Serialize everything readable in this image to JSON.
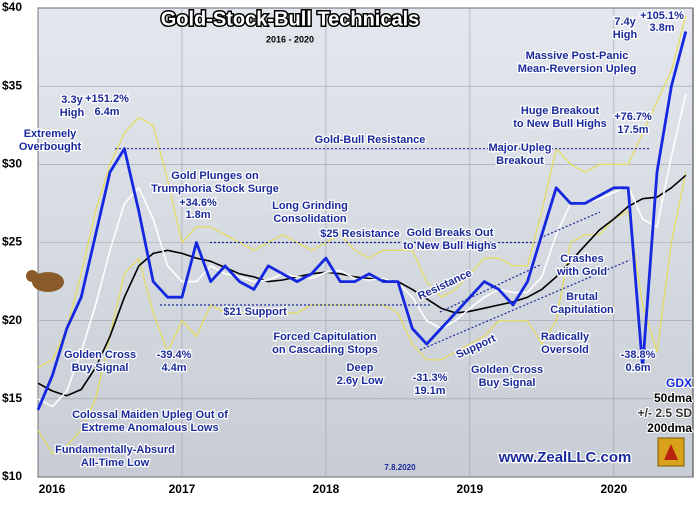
{
  "chart_data": {
    "type": "line",
    "title": "Gold-Stock-Bull Technicals",
    "subtitle": "2016 - 2020",
    "x": [
      2016.0,
      2016.1,
      2016.2,
      2016.3,
      2016.4,
      2016.5,
      2016.6,
      2016.7,
      2016.8,
      2016.9,
      2017.0,
      2017.1,
      2017.2,
      2017.3,
      2017.4,
      2017.5,
      2017.6,
      2017.7,
      2017.8,
      2017.9,
      2018.0,
      2018.1,
      2018.2,
      2018.3,
      2018.4,
      2018.5,
      2018.6,
      2018.7,
      2018.8,
      2018.9,
      2019.0,
      2019.1,
      2019.2,
      2019.3,
      2019.4,
      2019.5,
      2019.6,
      2019.7,
      2019.8,
      2019.9,
      2020.0,
      2020.1,
      2020.2,
      2020.3,
      2020.4,
      2020.5
    ],
    "xlim": [
      2016,
      2020.55
    ],
    "xticks": [
      2016,
      2017,
      2018,
      2019,
      2020
    ],
    "ylim": [
      10,
      40
    ],
    "yticks": [
      {
        "value": 10,
        "label": "$10"
      },
      {
        "value": 15,
        "label": "$15"
      },
      {
        "value": 20,
        "label": "$20"
      },
      {
        "value": 25,
        "label": "$25"
      },
      {
        "value": 30,
        "label": "$30"
      },
      {
        "value": 35,
        "label": "$35"
      },
      {
        "value": 40,
        "label": "$40"
      }
    ],
    "grid": true,
    "legend": "lower right",
    "series": [
      {
        "name": "GDX",
        "color": "#1428e0",
        "values": [
          14.3,
          16.5,
          19.5,
          21.5,
          25.5,
          29.5,
          31.0,
          27.0,
          22.5,
          21.5,
          21.5,
          25.0,
          22.5,
          23.5,
          22.5,
          22.0,
          23.5,
          23.0,
          22.5,
          23.0,
          24.0,
          22.5,
          22.5,
          23.0,
          22.5,
          22.5,
          19.5,
          18.5,
          19.5,
          20.5,
          21.5,
          22.5,
          22.0,
          21.0,
          22.5,
          25.5,
          28.5,
          27.5,
          27.5,
          28.0,
          28.5,
          28.5,
          17.0,
          29.5,
          35.0,
          38.5
        ]
      },
      {
        "name": "50dma",
        "color": "#ffffff",
        "values": [
          15.0,
          14.5,
          15.5,
          18.0,
          21.0,
          24.5,
          27.5,
          28.5,
          26.5,
          23.5,
          22.5,
          22.5,
          23.5,
          23.0,
          22.8,
          22.5,
          22.6,
          23.0,
          22.8,
          22.7,
          23.1,
          23.2,
          22.7,
          22.6,
          22.7,
          22.4,
          21.5,
          20.0,
          19.5,
          20.0,
          20.8,
          21.5,
          22.0,
          21.8,
          21.8,
          22.8,
          25.5,
          27.5,
          27.5,
          27.8,
          28.2,
          28.6,
          26.5,
          26.0,
          30.5,
          34.5
        ]
      },
      {
        "name": "200dma",
        "color": "#000000",
        "values": [
          16.0,
          15.5,
          15.2,
          15.6,
          17.0,
          19.0,
          21.5,
          23.5,
          24.3,
          24.5,
          24.3,
          24.0,
          23.8,
          23.4,
          23.0,
          22.8,
          22.5,
          22.6,
          22.8,
          23.0,
          23.1,
          23.0,
          22.8,
          22.7,
          22.6,
          22.5,
          22.0,
          21.4,
          20.8,
          20.5,
          20.6,
          20.8,
          21.0,
          21.2,
          21.5,
          22.0,
          22.8,
          23.8,
          24.8,
          25.8,
          26.5,
          27.3,
          27.8,
          27.9,
          28.5,
          29.3
        ]
      }
    ],
    "band": {
      "name": "+/- 2.5 SD",
      "color": "#e6dc5a",
      "upper": [
        17.0,
        17.5,
        19.5,
        23.0,
        27.0,
        30.0,
        32.0,
        33.0,
        32.5,
        29.0,
        25.0,
        26.0,
        26.0,
        25.5,
        25.0,
        24.5,
        25.0,
        25.5,
        25.0,
        24.5,
        25.0,
        25.5,
        24.5,
        24.0,
        24.5,
        24.5,
        24.5,
        22.5,
        21.5,
        22.0,
        23.0,
        24.0,
        24.0,
        23.5,
        23.5,
        27.0,
        31.0,
        30.0,
        29.5,
        30.0,
        30.0,
        30.0,
        32.0,
        34.0,
        36.0,
        39.5
      ],
      "lower": [
        13.0,
        11.5,
        12.0,
        13.0,
        15.0,
        19.0,
        23.0,
        24.0,
        20.5,
        18.0,
        20.0,
        19.0,
        21.0,
        20.5,
        20.5,
        20.5,
        20.5,
        20.5,
        20.5,
        21.0,
        21.0,
        21.0,
        21.0,
        21.0,
        21.0,
        20.5,
        18.5,
        17.5,
        17.5,
        18.0,
        18.5,
        19.0,
        20.0,
        20.0,
        20.0,
        18.5,
        20.0,
        25.0,
        25.5,
        25.5,
        26.5,
        27.0,
        21.0,
        18.0,
        25.0,
        29.5
      ]
    },
    "annotations": [
      [
        "3.3y",
        "High"
      ],
      [
        "+151.2%"
      ],
      [
        "6.4m"
      ],
      [
        "Extremely",
        "Overbought"
      ],
      [
        "Gold Plunges on",
        "Trumphoria Stock Surge"
      ],
      [
        "+34.6%"
      ],
      [
        "1.8m"
      ],
      [
        "Long Grinding",
        "Consolidation"
      ],
      [
        "$25 Resistance"
      ],
      [
        "Gold-Bull Resistance"
      ],
      [
        "$21 Support"
      ],
      [
        "Forced Capitulation",
        "on Cascading Stops"
      ],
      [
        "Deep",
        "2.6y Low"
      ],
      [
        "-31.3%"
      ],
      [
        "19.1m"
      ],
      [
        "Golden Cross",
        "Buy Signal"
      ],
      [
        "Resistance"
      ],
      [
        "Support"
      ],
      [
        "Gold Breaks Out",
        "to New Bull Highs"
      ],
      [
        "Major Upleg",
        "Breakout"
      ],
      [
        "Crashes",
        "with Gold"
      ],
      [
        "Brutal",
        "Capitulation"
      ],
      [
        "Radically",
        "Oversold"
      ],
      [
        "-38.8%"
      ],
      [
        "0.6m"
      ],
      [
        "Huge Breakout",
        "to New Bull Highs"
      ],
      [
        "+76.7%"
      ],
      [
        "17.5m"
      ],
      [
        "Massive Post-Panic",
        "Mean-Reversion Upleg"
      ],
      [
        "7.4y",
        "High"
      ],
      [
        "+105.1%"
      ],
      [
        "3.8m"
      ],
      [
        "Golden Cross",
        "Buy Signal"
      ],
      [
        "-39.4%"
      ],
      [
        "4.4m"
      ],
      [
        "Colossal Maiden Upleg Out of",
        "Extreme Anomalous Lows"
      ],
      [
        "Fundamentally-Absurd",
        "All-Time Low"
      ],
      [
        "www.ZealLLC.com"
      ],
      [
        "7.8.2020"
      ]
    ]
  }
}
